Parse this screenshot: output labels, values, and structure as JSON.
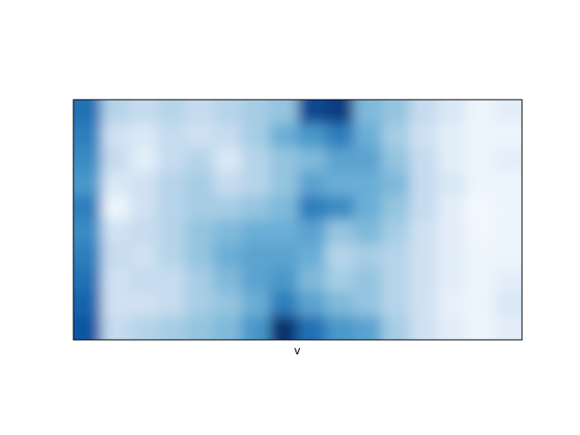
{
  "chart_data": {
    "type": "heatmap",
    "title": "",
    "xlabel": "v",
    "ylabel": "",
    "colormap": "Blues",
    "interpolation": "smooth",
    "x_ticks": [],
    "y_ticks": [],
    "grid": false,
    "legend": "none",
    "colorbar": false,
    "value_range": [
      0,
      1
    ],
    "rows": 10,
    "cols": 16,
    "values": [
      [
        0.75,
        0.3,
        0.25,
        0.3,
        0.25,
        0.3,
        0.35,
        0.4,
        0.9,
        0.95,
        0.45,
        0.4,
        0.25,
        0.15,
        0.05,
        0.1
      ],
      [
        0.7,
        0.2,
        0.15,
        0.25,
        0.2,
        0.25,
        0.35,
        0.5,
        0.6,
        0.7,
        0.5,
        0.35,
        0.2,
        0.1,
        0.05,
        0.05
      ],
      [
        0.65,
        0.25,
        0.1,
        0.25,
        0.3,
        0.15,
        0.3,
        0.4,
        0.45,
        0.55,
        0.55,
        0.4,
        0.25,
        0.1,
        0.05,
        0.1
      ],
      [
        0.6,
        0.15,
        0.2,
        0.3,
        0.35,
        0.25,
        0.3,
        0.4,
        0.55,
        0.5,
        0.5,
        0.45,
        0.25,
        0.15,
        0.05,
        0.05
      ],
      [
        0.7,
        0.05,
        0.2,
        0.3,
        0.35,
        0.35,
        0.4,
        0.45,
        0.7,
        0.65,
        0.5,
        0.4,
        0.25,
        0.1,
        0.02,
        0.05
      ],
      [
        0.65,
        0.2,
        0.25,
        0.3,
        0.4,
        0.45,
        0.5,
        0.5,
        0.55,
        0.4,
        0.45,
        0.35,
        0.2,
        0.1,
        0.03,
        0.05
      ],
      [
        0.7,
        0.25,
        0.2,
        0.3,
        0.4,
        0.5,
        0.55,
        0.55,
        0.5,
        0.3,
        0.35,
        0.3,
        0.2,
        0.1,
        0.05,
        0.05
      ],
      [
        0.75,
        0.2,
        0.25,
        0.25,
        0.35,
        0.45,
        0.55,
        0.6,
        0.45,
        0.35,
        0.4,
        0.3,
        0.2,
        0.1,
        0.05,
        0.1
      ],
      [
        0.8,
        0.2,
        0.2,
        0.25,
        0.35,
        0.4,
        0.5,
        0.7,
        0.55,
        0.45,
        0.4,
        0.3,
        0.2,
        0.08,
        0.05,
        0.15
      ],
      [
        0.85,
        0.25,
        0.3,
        0.35,
        0.4,
        0.45,
        0.6,
        1.0,
        0.75,
        0.6,
        0.55,
        0.35,
        0.2,
        0.1,
        0.05,
        0.1
      ]
    ]
  }
}
